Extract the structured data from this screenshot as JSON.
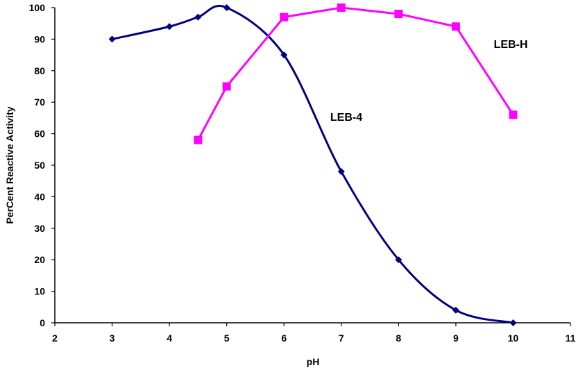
{
  "chart_data": {
    "type": "line",
    "title": "",
    "xlabel": "pH",
    "ylabel": "PerCent Reactive Activity",
    "xlim": [
      2,
      11
    ],
    "ylim": [
      0,
      100
    ],
    "x_ticks": [
      "2",
      "3",
      "4",
      "5",
      "6",
      "7",
      "8",
      "9",
      "10",
      "11"
    ],
    "y_ticks": [
      "0",
      "10",
      "20",
      "30",
      "40",
      "50",
      "60",
      "70",
      "80",
      "90",
      "100"
    ],
    "grid": false,
    "legend": "none",
    "series": [
      {
        "name": "LEB-4",
        "color": "#000080",
        "marker": "diamond",
        "smooth": true,
        "points": [
          {
            "x": 3,
            "y": 90
          },
          {
            "x": 4,
            "y": 94
          },
          {
            "x": 4.5,
            "y": 97
          },
          {
            "x": 5,
            "y": 100
          },
          {
            "x": 6,
            "y": 85
          },
          {
            "x": 7,
            "y": 48
          },
          {
            "x": 8,
            "y": 20
          },
          {
            "x": 9,
            "y": 4
          },
          {
            "x": 10,
            "y": 0
          }
        ]
      },
      {
        "name": "LEB-H",
        "color": "#ff00ff",
        "marker": "square",
        "smooth": false,
        "points": [
          {
            "x": 4.5,
            "y": 58
          },
          {
            "x": 5,
            "y": 75
          },
          {
            "x": 6,
            "y": 97
          },
          {
            "x": 7,
            "y": 100
          },
          {
            "x": 8,
            "y": 98
          },
          {
            "x": 9,
            "y": 94
          },
          {
            "x": 10,
            "y": 66
          }
        ]
      }
    ]
  }
}
